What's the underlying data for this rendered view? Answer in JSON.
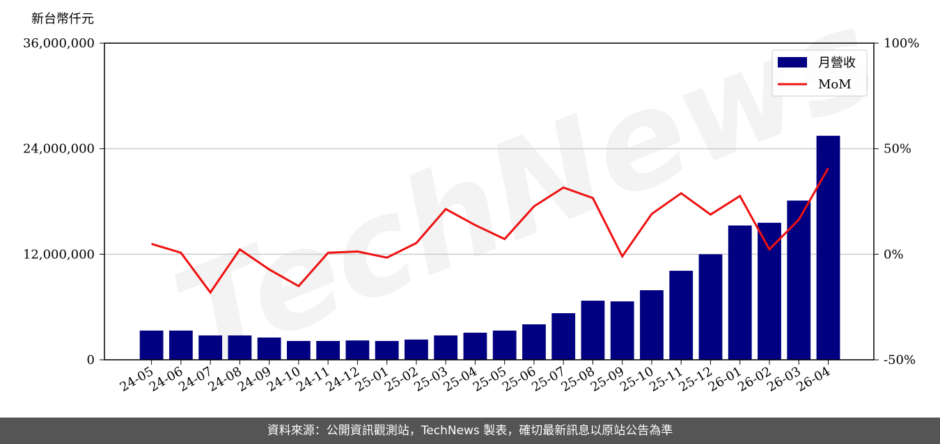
{
  "chart_data": {
    "type": "bar_line",
    "y_label": "新台幣仟元",
    "watermark": "TechNews",
    "categories": [
      "24-05",
      "24-06",
      "24-07",
      "24-08",
      "24-09",
      "24-10",
      "24-11",
      "24-12",
      "25-01",
      "25-02",
      "25-03",
      "25-04",
      "25-05",
      "25-06",
      "25-07",
      "25-08",
      "25-09",
      "25-10",
      "25-11",
      "25-12",
      "26-01",
      "26-02",
      "26-03",
      "26-04"
    ],
    "series": [
      {
        "name": "月營收",
        "color": "#000080",
        "values": [
          3320000,
          3320000,
          2770000,
          2770000,
          2530000,
          2140000,
          2140000,
          2200000,
          2140000,
          2300000,
          2770000,
          3080000,
          3320000,
          4030000,
          5300000,
          6720000,
          6640000,
          7910000,
          10120000,
          12000000,
          15270000,
          15580000,
          18100000,
          25470000
        ]
      },
      {
        "name": "MoM",
        "color": "#ee1111",
        "axis": "y2",
        "values": [
          4.9,
          0.7,
          -18.1,
          2.3,
          -7.2,
          -15.1,
          0.7,
          1.3,
          -1.6,
          5.3,
          21.4,
          13.8,
          7.2,
          22.7,
          31.6,
          26.6,
          -1.0,
          19.1,
          28.9,
          18.8,
          27.6,
          2.3,
          16.4,
          40.8
        ]
      }
    ],
    "ylim": [
      0,
      36000000
    ],
    "yticks": [
      0,
      {
        "value": 12000000,
        "label": "12,000,000"
      },
      {
        "value": 24000000,
        "label": "24,000,000"
      },
      {
        "value": 36000000,
        "label": "36,000,000"
      }
    ],
    "y2lim": [
      -50,
      100
    ],
    "y2ticks": [
      {
        "value": -50,
        "label": "-50%"
      },
      {
        "value": 0,
        "label": "0%"
      },
      {
        "value": 50,
        "label": "50%"
      },
      {
        "value": 100,
        "label": "100%"
      }
    ],
    "grid": true,
    "legend": "upper right",
    "footer": "資料來源：公開資訊觀測站，TechNews 製表，確切最新訊息以原站公告為準"
  }
}
